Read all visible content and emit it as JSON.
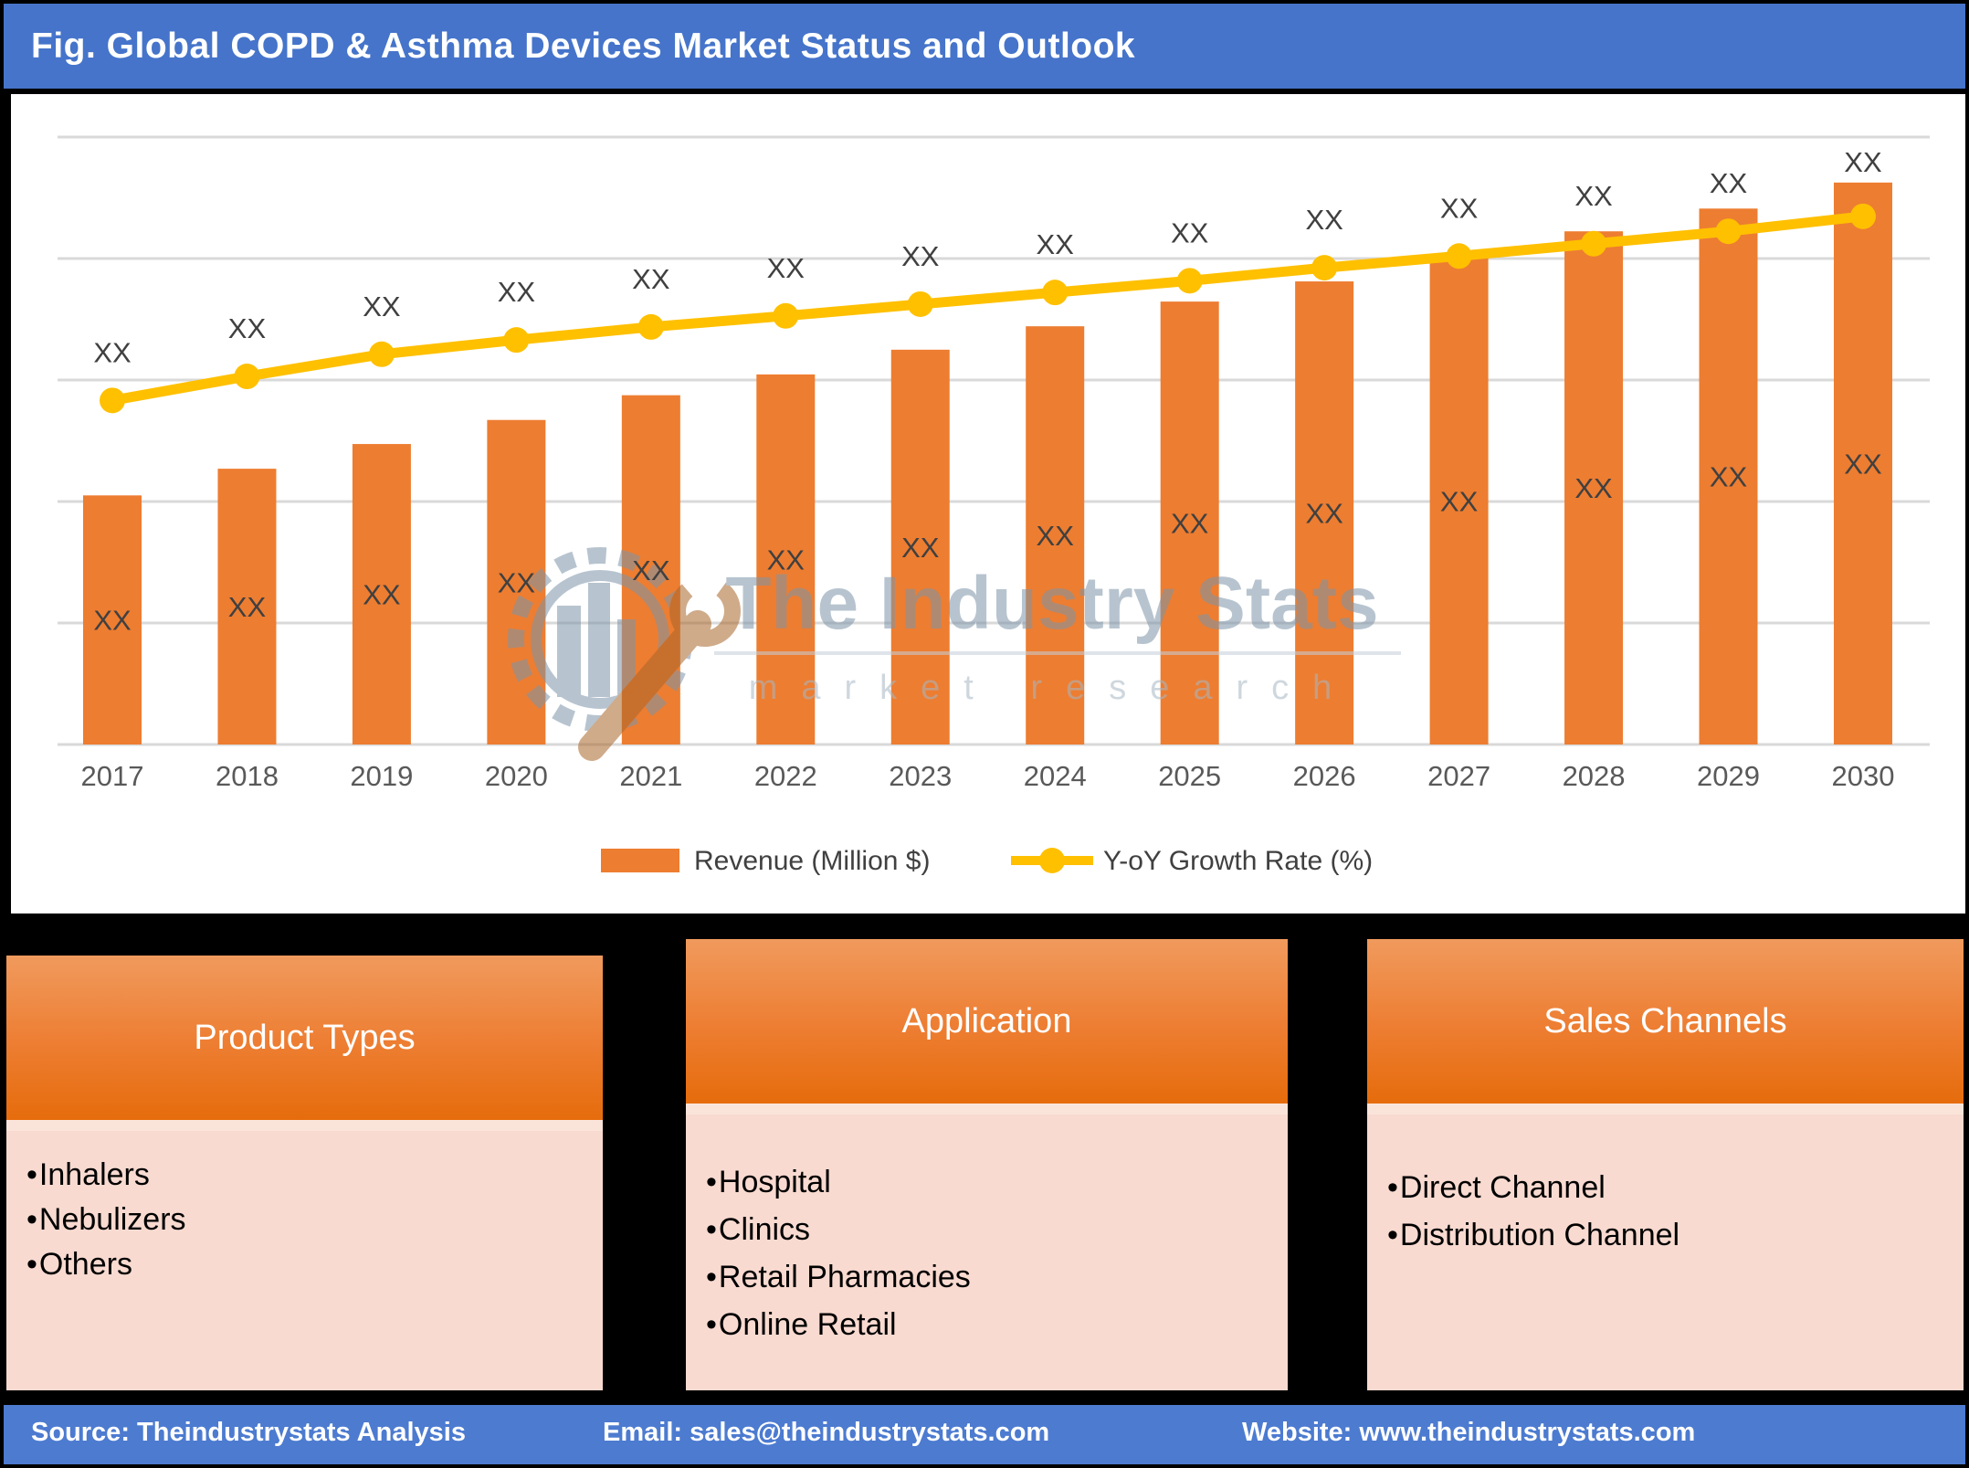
{
  "header": {
    "title": "Fig. Global COPD & Asthma Devices Market Status and Outlook"
  },
  "watermark": {
    "brand": "The Industry Stats",
    "tagline": "market research",
    "logo": "gear-buildings-wrench-icon"
  },
  "chart_data": {
    "type": "bar+line",
    "title": "Global COPD & Asthma Devices Market Status and Outlook",
    "categories": [
      "2017",
      "2018",
      "2019",
      "2020",
      "2021",
      "2022",
      "2023",
      "2024",
      "2025",
      "2026",
      "2027",
      "2028",
      "2029",
      "2030"
    ],
    "value_labels_shown_as": "XX",
    "series": [
      {
        "name": "Revenue (Million $)",
        "type": "bar",
        "color": "#ED7D31",
        "labels": [
          "XX",
          "XX",
          "XX",
          "XX",
          "XX",
          "XX",
          "XX",
          "XX",
          "XX",
          "XX",
          "XX",
          "XX",
          "XX",
          "XX"
        ],
        "relative_heights_pct_estimated": [
          38.3,
          42.4,
          46.2,
          49.9,
          53.7,
          56.9,
          60.7,
          64.3,
          68.1,
          71.2,
          74.9,
          78.9,
          82.4,
          86.4
        ]
      },
      {
        "name": "Y-oY Growth Rate (%)",
        "type": "line",
        "color": "#FFC000",
        "labels": [
          "XX",
          "XX",
          "XX",
          "XX",
          "XX",
          "XX",
          "XX",
          "XX",
          "XX",
          "XX",
          "XX",
          "XX",
          "XX",
          "XX"
        ],
        "relative_heights_pct_estimated": [
          52.9,
          56.6,
          60.0,
          62.2,
          64.2,
          65.9,
          67.7,
          69.5,
          71.3,
          73.3,
          75.1,
          77.0,
          78.9,
          81.2
        ]
      }
    ],
    "grid": "horizontal",
    "gridline_count": 6,
    "y_axis_ticks_visible": false,
    "legend_position": "bottom"
  },
  "panels": [
    {
      "title": "Product Types",
      "items": [
        "Inhalers",
        "Nebulizers",
        "Others"
      ]
    },
    {
      "title": "Application",
      "items": [
        "Hospital",
        "Clinics",
        "Retail Pharmacies",
        "Online Retail"
      ]
    },
    {
      "title": "Sales Channels",
      "items": [
        "Direct Channel",
        "Distribution Channel"
      ]
    }
  ],
  "footer": {
    "source": "Source: Theindustrystats Analysis",
    "email": "Email: sales@theindustrystats.com",
    "website": "Website: www.theindustrystats.com"
  },
  "colors": {
    "header_blue": "#4574CA",
    "footer_blue": "#4C7BD0",
    "bar_orange": "#ED7D31",
    "line_yellow": "#FFC000",
    "label_gray": "#404040",
    "axis_gray": "#595959",
    "gridline": "#D9D9D9",
    "card_header_orange_top": "#F09A5D",
    "card_header_orange_bottom": "#E66C0C",
    "card_body_pink": "#F8DAD0",
    "watermark_gray_blue": "#7E95A8",
    "watermark_wrench_brown": "#A9672C",
    "section_background": "#000000"
  }
}
